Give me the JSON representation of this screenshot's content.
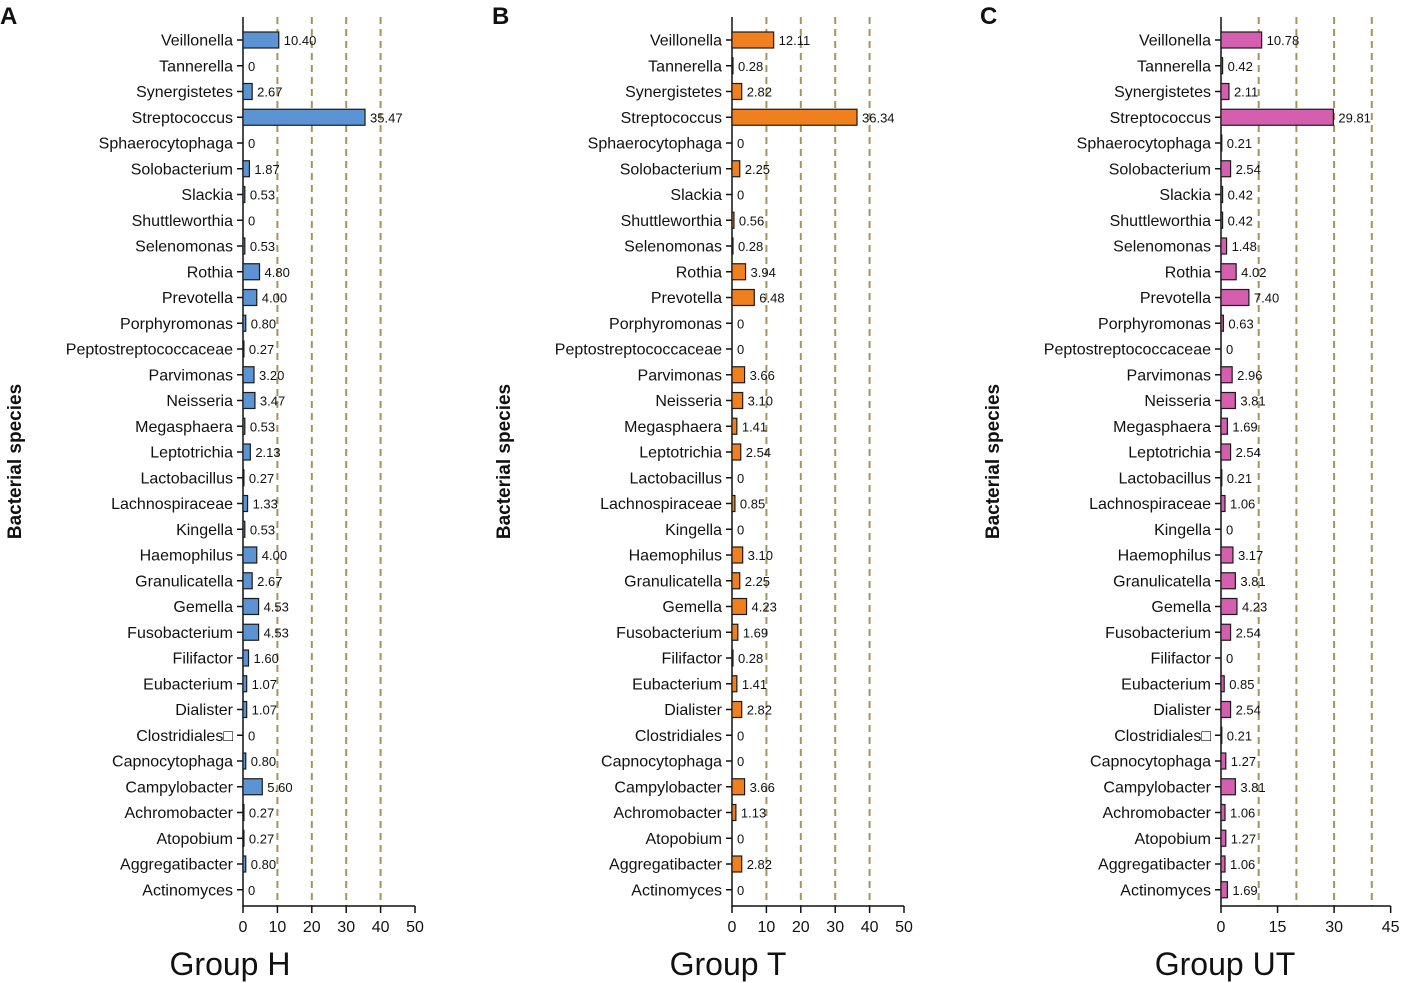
{
  "chart_data": [
    {
      "type": "bar",
      "orientation": "horizontal",
      "panel": "A",
      "xlabel": "Group H",
      "ylabel": "Bacterial species",
      "bar_color": "#5b93d3",
      "xlim": [
        0,
        50
      ],
      "xticks": [
        "0",
        "10",
        "20",
        "30",
        "40",
        "50"
      ],
      "gridlines_at": [
        10,
        20,
        30,
        40
      ],
      "gridline_color": "#a6955a",
      "categories": [
        "Veillonella",
        "Tannerella",
        "Synergistetes",
        "Streptococcus",
        "Sphaerocytophaga",
        "Solobacterium",
        "Slackia",
        "Shuttleworthia",
        "Selenomonas",
        "Rothia",
        "Prevotella",
        "Porphyromonas",
        "Peptostreptococcaceae",
        "Parvimonas",
        "Neisseria",
        "Megasphaera",
        "Leptotrichia",
        "Lactobacillus",
        "Lachnospiraceae",
        "Kingella",
        "Haemophilus",
        "Granulicatella",
        "Gemella",
        "Fusobacterium",
        "Filifactor",
        "Eubacterium",
        "Dialister",
        "Clostridiales□",
        "Capnocytophaga",
        "Campylobacter",
        "Achromobacter",
        "Atopobium",
        "Aggregatibacter",
        "Actinomyces"
      ],
      "value_labels": [
        "10.40",
        "0",
        "2.67",
        "35.47",
        "0",
        "1.87",
        "0.53",
        "0",
        "0.53",
        "4.80",
        "4.00",
        "0.80",
        "0.27",
        "3.20",
        "3.47",
        "0.53",
        "2.13",
        "0.27",
        "1.33",
        "0.53",
        "4.00",
        "2.67",
        "4.53",
        "4.53",
        "1.60",
        "1.07",
        "1.07",
        "0",
        "0.80",
        "5.60",
        "0.27",
        "0.27",
        "0.80",
        "0"
      ],
      "values": [
        10.4,
        0,
        2.67,
        35.47,
        0,
        1.87,
        0.53,
        0,
        0.53,
        4.8,
        4.0,
        0.8,
        0.27,
        3.2,
        3.47,
        0.53,
        2.13,
        0.27,
        1.33,
        0.53,
        4.0,
        2.67,
        4.53,
        4.53,
        1.6,
        1.07,
        1.07,
        0,
        0.8,
        5.6,
        0.27,
        0.27,
        0.8,
        0
      ]
    },
    {
      "type": "bar",
      "orientation": "horizontal",
      "panel": "B",
      "xlabel": "Group T",
      "ylabel": "Bacterial species",
      "bar_color": "#f07f1e",
      "xlim": [
        0,
        50
      ],
      "xticks": [
        "0",
        "10",
        "20",
        "30",
        "40",
        "50"
      ],
      "gridlines_at": [
        10,
        20,
        30,
        40
      ],
      "gridline_color": "#a6955a",
      "categories": [
        "Veillonella",
        "Tannerella",
        "Synergistetes",
        "Streptococcus",
        "Sphaerocytophaga",
        "Solobacterium",
        "Slackia",
        "Shuttleworthia",
        "Selenomonas",
        "Rothia",
        "Prevotella",
        "Porphyromonas",
        "Peptostreptococcaceae",
        "Parvimonas",
        "Neisseria",
        "Megasphaera",
        "Leptotrichia",
        "Lactobacillus",
        "Lachnospiraceae",
        "Kingella",
        "Haemophilus",
        "Granulicatella",
        "Gemella",
        "Fusobacterium",
        "Filifactor",
        "Eubacterium",
        "Dialister",
        "Clostridiales",
        "Capnocytophaga",
        "Campylobacter",
        "Achromobacter",
        "Atopobium",
        "Aggregatibacter",
        "Actinomyces"
      ],
      "value_labels": [
        "12.11",
        "0.28",
        "2.82",
        "36.34",
        "0",
        "2.25",
        "0",
        "0.56",
        "0.28",
        "3.94",
        "6.48",
        "0",
        "0",
        "3.66",
        "3.10",
        "1.41",
        "2.54",
        "0",
        "0.85",
        "0",
        "3.10",
        "2.25",
        "4.23",
        "1.69",
        "0.28",
        "1.41",
        "2.82",
        "0",
        "0",
        "3.66",
        "1.13",
        "0",
        "2.82",
        "0"
      ],
      "values": [
        12.11,
        0.28,
        2.82,
        36.34,
        0,
        2.25,
        0,
        0.56,
        0.28,
        3.94,
        6.48,
        0,
        0,
        3.66,
        3.1,
        1.41,
        2.54,
        0,
        0.85,
        0,
        3.1,
        2.25,
        4.23,
        1.69,
        0.28,
        1.41,
        2.82,
        0,
        0,
        3.66,
        1.13,
        0,
        2.82,
        0
      ]
    },
    {
      "type": "bar",
      "orientation": "horizontal",
      "panel": "C",
      "xlabel": "Group UT",
      "ylabel": "Bacterial species",
      "bar_color": "#d35fae",
      "xlim": [
        0,
        45
      ],
      "xticks": [
        "0",
        "15",
        "30",
        "45"
      ],
      "gridlines_at": [
        10,
        20,
        30,
        40
      ],
      "gridline_color": "#a6955a",
      "categories": [
        "Veillonella",
        "Tannerella",
        "Synergistetes",
        "Streptococcus",
        "Sphaerocytophaga",
        "Solobacterium",
        "Slackia",
        "Shuttleworthia",
        "Selenomonas",
        "Rothia",
        "Prevotella",
        "Porphyromonas",
        "Peptostreptococcaceae",
        "Parvimonas",
        "Neisseria",
        "Megasphaera",
        "Leptotrichia",
        "Lactobacillus",
        "Lachnospiraceae",
        "Kingella",
        "Haemophilus",
        "Granulicatella",
        "Gemella",
        "Fusobacterium",
        "Filifactor",
        "Eubacterium",
        "Dialister",
        "Clostridiales□",
        "Capnocytophaga",
        "Campylobacter",
        "Achromobacter",
        "Atopobium",
        "Aggregatibacter",
        "Actinomyces"
      ],
      "value_labels": [
        "10.78",
        "0.42",
        "2.11",
        "29.81",
        "0.21",
        "2.54",
        "0.42",
        "0.42",
        "1.48",
        "4.02",
        "7.40",
        "0.63",
        "0",
        "2.96",
        "3.81",
        "1.69",
        "2.54",
        "0.21",
        "1.06",
        "0",
        "3.17",
        "3.81",
        "4.23",
        "2.54",
        "0",
        "0.85",
        "2.54",
        "0.21",
        "1.27",
        "3.81",
        "1.06",
        "1.27",
        "1.06",
        "1.69"
      ],
      "values": [
        10.78,
        0.42,
        2.11,
        29.81,
        0.21,
        2.54,
        0.42,
        0.42,
        1.48,
        4.02,
        7.4,
        0.63,
        0,
        2.96,
        3.81,
        1.69,
        2.54,
        0.21,
        1.06,
        0,
        3.17,
        3.81,
        4.23,
        2.54,
        0,
        0.85,
        2.54,
        0.21,
        1.27,
        3.81,
        1.06,
        1.27,
        1.06,
        1.69
      ]
    }
  ]
}
